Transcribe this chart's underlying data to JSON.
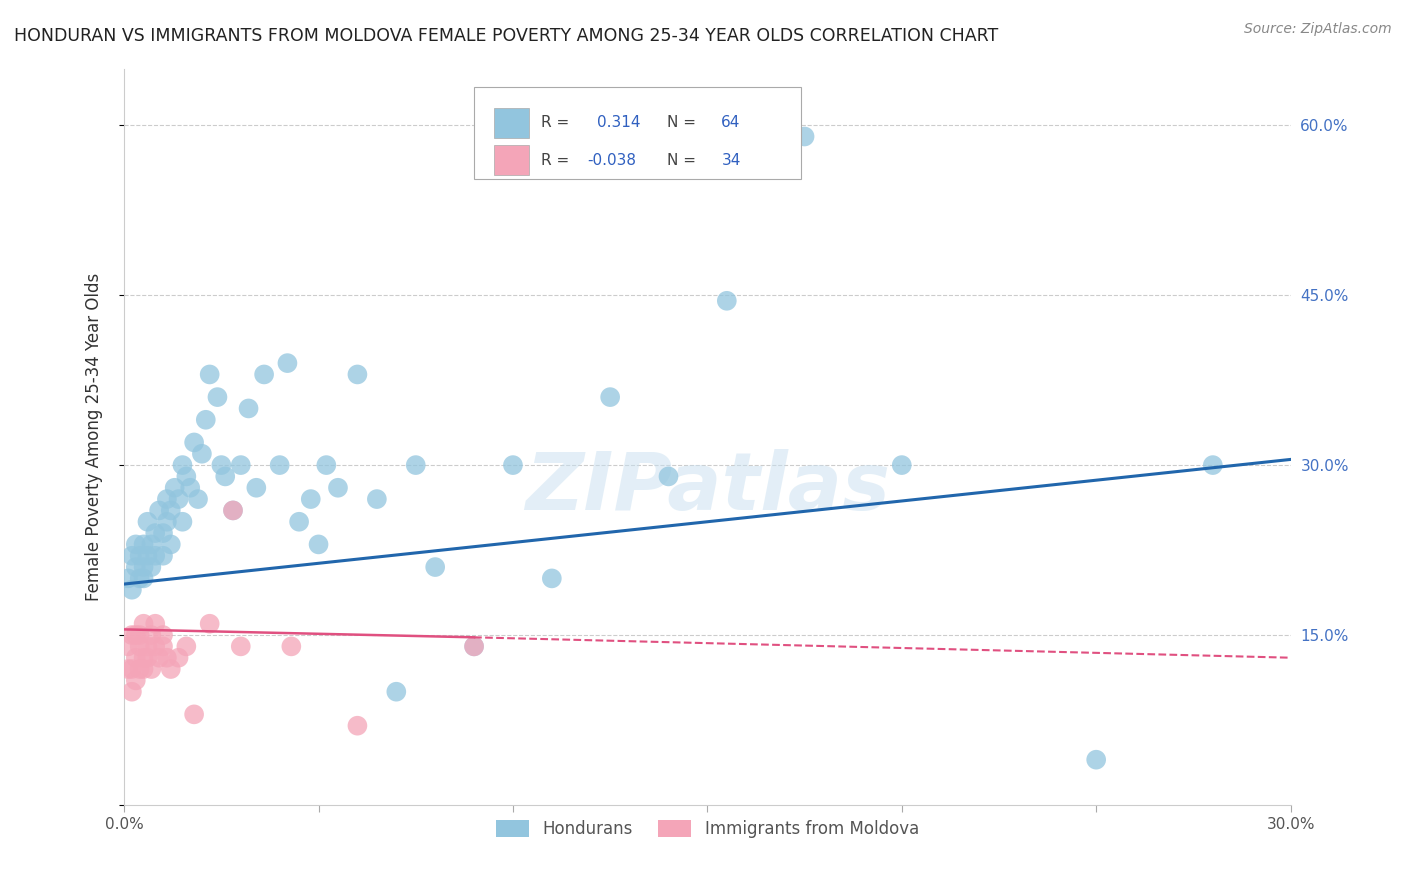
{
  "title": "HONDURAN VS IMMIGRANTS FROM MOLDOVA FEMALE POVERTY AMONG 25-34 YEAR OLDS CORRELATION CHART",
  "source": "Source: ZipAtlas.com",
  "ylabel": "Female Poverty Among 25-34 Year Olds",
  "xlim": [
    0.0,
    0.3
  ],
  "ylim": [
    0.0,
    0.65
  ],
  "blue_color": "#92c5de",
  "pink_color": "#f4a5b8",
  "blue_line_color": "#2166ac",
  "pink_line_color": "#d6604d",
  "pink_line_solid_color": "#e05080",
  "grid_color": "#cccccc",
  "background_color": "#ffffff",
  "watermark": "ZIPatlas",
  "hon_x": [
    0.001,
    0.002,
    0.002,
    0.003,
    0.003,
    0.004,
    0.004,
    0.005,
    0.005,
    0.005,
    0.006,
    0.006,
    0.007,
    0.007,
    0.008,
    0.008,
    0.009,
    0.01,
    0.01,
    0.011,
    0.011,
    0.012,
    0.012,
    0.013,
    0.014,
    0.015,
    0.015,
    0.016,
    0.017,
    0.018,
    0.019,
    0.02,
    0.021,
    0.022,
    0.024,
    0.025,
    0.026,
    0.028,
    0.03,
    0.032,
    0.034,
    0.036,
    0.04,
    0.042,
    0.045,
    0.048,
    0.05,
    0.052,
    0.055,
    0.06,
    0.065,
    0.07,
    0.075,
    0.08,
    0.09,
    0.1,
    0.11,
    0.125,
    0.14,
    0.155,
    0.175,
    0.2,
    0.25,
    0.28
  ],
  "hon_y": [
    0.2,
    0.19,
    0.22,
    0.21,
    0.23,
    0.22,
    0.2,
    0.21,
    0.23,
    0.2,
    0.22,
    0.25,
    0.23,
    0.21,
    0.24,
    0.22,
    0.26,
    0.24,
    0.22,
    0.25,
    0.27,
    0.23,
    0.26,
    0.28,
    0.27,
    0.3,
    0.25,
    0.29,
    0.28,
    0.32,
    0.27,
    0.31,
    0.34,
    0.38,
    0.36,
    0.3,
    0.29,
    0.26,
    0.3,
    0.35,
    0.28,
    0.38,
    0.3,
    0.39,
    0.25,
    0.27,
    0.23,
    0.3,
    0.28,
    0.38,
    0.27,
    0.1,
    0.3,
    0.21,
    0.14,
    0.3,
    0.2,
    0.36,
    0.29,
    0.445,
    0.59,
    0.3,
    0.04,
    0.3
  ],
  "mol_x": [
    0.001,
    0.001,
    0.002,
    0.002,
    0.002,
    0.003,
    0.003,
    0.003,
    0.004,
    0.004,
    0.004,
    0.005,
    0.005,
    0.005,
    0.006,
    0.006,
    0.007,
    0.007,
    0.008,
    0.008,
    0.009,
    0.01,
    0.01,
    0.011,
    0.012,
    0.014,
    0.016,
    0.018,
    0.022,
    0.028,
    0.03,
    0.043,
    0.06,
    0.09
  ],
  "mol_y": [
    0.14,
    0.12,
    0.15,
    0.12,
    0.1,
    0.13,
    0.15,
    0.11,
    0.14,
    0.12,
    0.15,
    0.13,
    0.16,
    0.12,
    0.14,
    0.13,
    0.15,
    0.12,
    0.14,
    0.16,
    0.13,
    0.15,
    0.14,
    0.13,
    0.12,
    0.13,
    0.14,
    0.08,
    0.16,
    0.26,
    0.14,
    0.14,
    0.07,
    0.14
  ],
  "hon_line_x0": 0.0,
  "hon_line_y0": 0.195,
  "hon_line_x1": 0.3,
  "hon_line_y1": 0.305,
  "mol_line_solid_x0": 0.0,
  "mol_line_solid_y0": 0.155,
  "mol_line_solid_x1": 0.09,
  "mol_line_solid_y1": 0.148,
  "mol_line_dash_x0": 0.09,
  "mol_line_dash_y0": 0.148,
  "mol_line_dash_x1": 0.3,
  "mol_line_dash_y1": 0.13
}
